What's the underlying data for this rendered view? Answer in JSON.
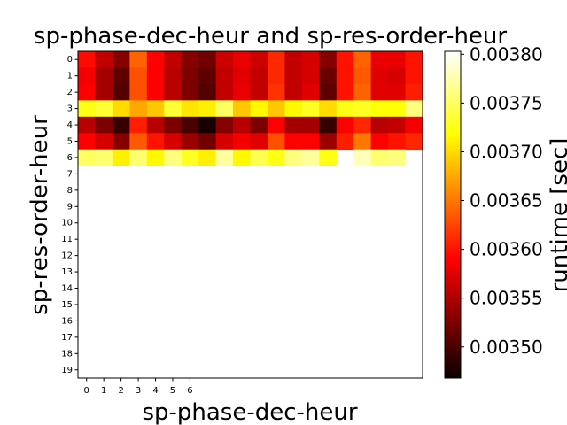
{
  "chart_data": {
    "type": "heatmap",
    "title": "sp-phase-dec-heur and sp-res-order-heur",
    "xlabel": "sp-phase-dec-heur",
    "ylabel": "sp-res-order-heur",
    "x_ticks": [
      "0",
      "1",
      "2",
      "3",
      "4",
      "5",
      "6"
    ],
    "y_ticks": [
      "0",
      "1",
      "2",
      "3",
      "4",
      "5",
      "6",
      "7",
      "8",
      "9",
      "10",
      "11",
      "12",
      "13",
      "14",
      "15",
      "16",
      "17",
      "18",
      "19"
    ],
    "n_cols": 20,
    "n_rows": 20,
    "colormap": "hot",
    "colorbar": {
      "label": "runtime [sec]",
      "min": 0.003468,
      "max": 0.003803,
      "ticks": [
        "0.00350",
        "0.00355",
        "0.00360",
        "0.00365",
        "0.00370",
        "0.00375",
        "0.00380"
      ],
      "tick_values": [
        0.0035,
        0.00355,
        0.0036,
        0.00365,
        0.0037,
        0.00375,
        0.0038
      ]
    },
    "values": [
      [
        0.003595,
        0.00356,
        0.00353,
        0.00364,
        0.00359,
        0.00356,
        0.00353,
        0.00352,
        0.003565,
        0.00358,
        0.003565,
        0.00361,
        0.00356,
        0.00357,
        0.00353,
        0.0036,
        0.00364,
        0.00358,
        0.00358,
        0.0036
      ],
      [
        0.003585,
        0.003545,
        0.00351,
        0.00363,
        0.00359,
        0.003555,
        0.003525,
        0.00351,
        0.00356,
        0.003575,
        0.00356,
        0.00361,
        0.00356,
        0.00357,
        0.003515,
        0.0036,
        0.003635,
        0.003575,
        0.00357,
        0.0036
      ],
      [
        0.00359,
        0.003545,
        0.003505,
        0.00363,
        0.00359,
        0.003555,
        0.003525,
        0.003505,
        0.00356,
        0.00358,
        0.00356,
        0.003615,
        0.00356,
        0.003575,
        0.00351,
        0.0036,
        0.00364,
        0.003575,
        0.003575,
        0.003605
      ],
      [
        0.003725,
        0.003735,
        0.0037,
        0.003675,
        0.00369,
        0.003735,
        0.003705,
        0.00371,
        0.00375,
        0.00369,
        0.003715,
        0.00369,
        0.003715,
        0.00373,
        0.0037,
        0.003725,
        0.00373,
        0.00372,
        0.00372,
        0.00376
      ],
      [
        0.003555,
        0.003525,
        0.00349,
        0.003605,
        0.003555,
        0.003525,
        0.0035,
        0.003475,
        0.00353,
        0.003555,
        0.003525,
        0.00359,
        0.003545,
        0.003545,
        0.00349,
        0.00359,
        0.00361,
        0.003555,
        0.00356,
        0.003585
      ],
      [
        0.00359,
        0.00357,
        0.00353,
        0.003635,
        0.0036,
        0.00357,
        0.00354,
        0.00352,
        0.00357,
        0.003585,
        0.003575,
        0.00363,
        0.00359,
        0.00359,
        0.00354,
        0.003605,
        0.00365,
        0.00359,
        0.0036,
        0.00361
      ],
      [
        0.00375,
        0.003755,
        0.00371,
        0.003755,
        0.003715,
        0.00376,
        0.00373,
        0.00371,
        0.00377,
        0.003715,
        0.003745,
        0.003725,
        0.00376,
        0.00377,
        0.003725,
        null,
        0.00378,
        0.003755,
        0.00376,
        null
      ],
      [
        null,
        null,
        null,
        null,
        null,
        null,
        null,
        null,
        null,
        null,
        null,
        null,
        null,
        null,
        null,
        null,
        null,
        null,
        null,
        null
      ],
      [
        null,
        null,
        null,
        null,
        null,
        null,
        null,
        null,
        null,
        null,
        null,
        null,
        null,
        null,
        null,
        null,
        null,
        null,
        null,
        null
      ],
      [
        null,
        null,
        null,
        null,
        null,
        null,
        null,
        null,
        null,
        null,
        null,
        null,
        null,
        null,
        null,
        null,
        null,
        null,
        null,
        null
      ],
      [
        null,
        null,
        null,
        null,
        null,
        null,
        null,
        null,
        null,
        null,
        null,
        null,
        null,
        null,
        null,
        null,
        null,
        null,
        null,
        null
      ],
      [
        null,
        null,
        null,
        null,
        null,
        null,
        null,
        null,
        null,
        null,
        null,
        null,
        null,
        null,
        null,
        null,
        null,
        null,
        null,
        null
      ],
      [
        null,
        null,
        null,
        null,
        null,
        null,
        null,
        null,
        null,
        null,
        null,
        null,
        null,
        null,
        null,
        null,
        null,
        null,
        null,
        null
      ],
      [
        null,
        null,
        null,
        null,
        null,
        null,
        null,
        null,
        null,
        null,
        null,
        null,
        null,
        null,
        null,
        null,
        null,
        null,
        null,
        null
      ],
      [
        null,
        null,
        null,
        null,
        null,
        null,
        null,
        null,
        null,
        null,
        null,
        null,
        null,
        null,
        null,
        null,
        null,
        null,
        null,
        null
      ],
      [
        null,
        null,
        null,
        null,
        null,
        null,
        null,
        null,
        null,
        null,
        null,
        null,
        null,
        null,
        null,
        null,
        null,
        null,
        null,
        null
      ],
      [
        null,
        null,
        null,
        null,
        null,
        null,
        null,
        null,
        null,
        null,
        null,
        null,
        null,
        null,
        null,
        null,
        null,
        null,
        null,
        null
      ],
      [
        null,
        null,
        null,
        null,
        null,
        null,
        null,
        null,
        null,
        null,
        null,
        null,
        null,
        null,
        null,
        null,
        null,
        null,
        null,
        null
      ],
      [
        null,
        null,
        null,
        null,
        null,
        null,
        null,
        null,
        null,
        null,
        null,
        null,
        null,
        null,
        null,
        null,
        null,
        null,
        null,
        null
      ],
      [
        null,
        null,
        null,
        null,
        null,
        null,
        null,
        null,
        null,
        null,
        null,
        null,
        null,
        null,
        null,
        null,
        null,
        null,
        null,
        null
      ]
    ]
  }
}
